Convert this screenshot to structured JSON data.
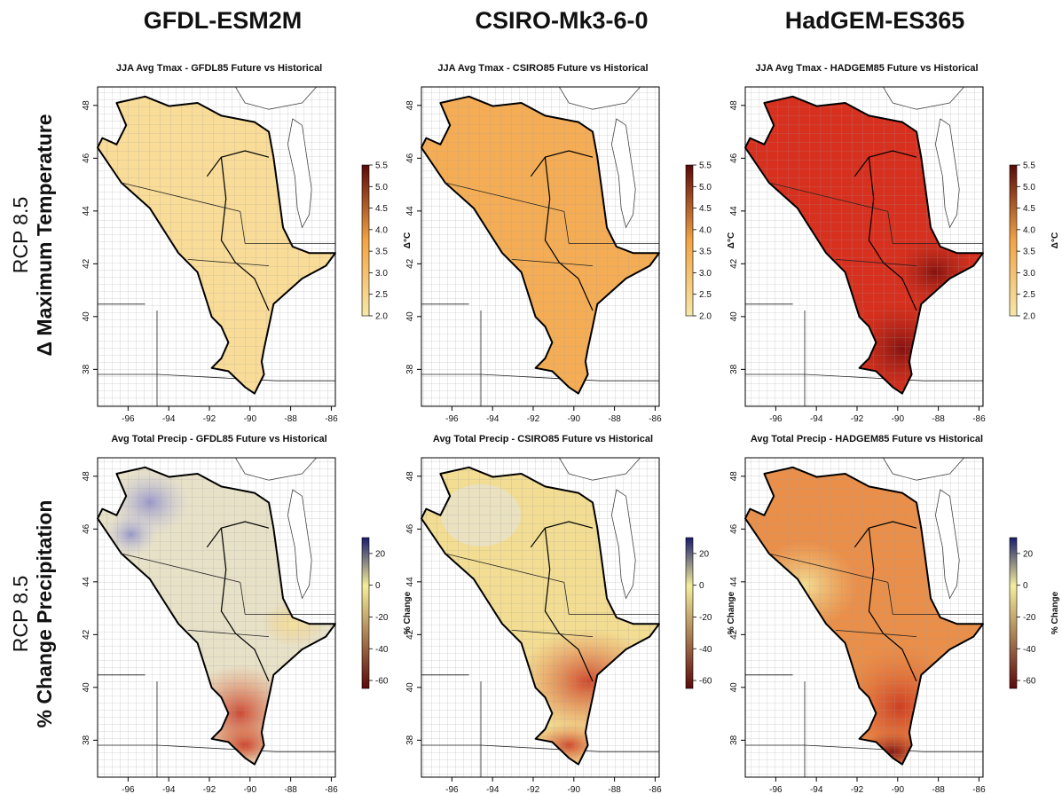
{
  "columns": [
    {
      "model": "GFDL-ESM2M",
      "code": "GFDL85"
    },
    {
      "model": "CSIRO-Mk3-6-0",
      "code": "CSIRO85"
    },
    {
      "model": "HadGEM-ES365",
      "code": "HADGEM85"
    }
  ],
  "rows": [
    {
      "scenario": "RCP 8.5",
      "variable": "Δ Maximum Temperature",
      "panel_titles": [
        "JJA Avg Tmax - GFDL85 Future vs Historical",
        "JJA Avg Tmax - CSIRO85 Future vs Historical",
        "JJA Avg Tmax - HADGEM85 Future vs Historical"
      ],
      "legend_title": "Δ°C",
      "legend_ticks": [
        "5.5",
        "5.0",
        "4.5",
        "4.0",
        "3.5",
        "3.0",
        "2.5",
        "2.0"
      ],
      "legend_range": [
        2.0,
        5.5
      ],
      "colors": {
        "low": "#f7e7a8",
        "mid": "#f2a446",
        "high": "#5a0a0a"
      },
      "fills": [
        "#f9dc98",
        "#f5ad55",
        "#d8301e"
      ]
    },
    {
      "scenario": "RCP 8.5",
      "variable": "% Change Precipitation",
      "panel_titles": [
        "Avg Total Precip - GFDL85 Future vs Historical",
        "Avg Total Precip - CSIRO85 Future vs Historical",
        "Avg Total Precip - HADGEM85 Future vs Historical"
      ],
      "legend_title": "% Change",
      "legend_ticks": [
        "20",
        "0",
        "-20",
        "-40",
        "-60"
      ],
      "legend_range": [
        -65,
        30
      ],
      "colors": {
        "low": "#5a0a0a",
        "mid": "#f4ee9c",
        "high": "#1a1d6b"
      },
      "fills": [
        "#e7e1c8",
        "#f2dd93",
        "#e98f4a"
      ]
    }
  ],
  "axes": {
    "lat_ticks": [
      "48",
      "46",
      "44",
      "42",
      "40",
      "38"
    ],
    "lon_ticks": [
      "-96",
      "-94",
      "-92",
      "-90",
      "-88",
      "-86"
    ]
  }
}
